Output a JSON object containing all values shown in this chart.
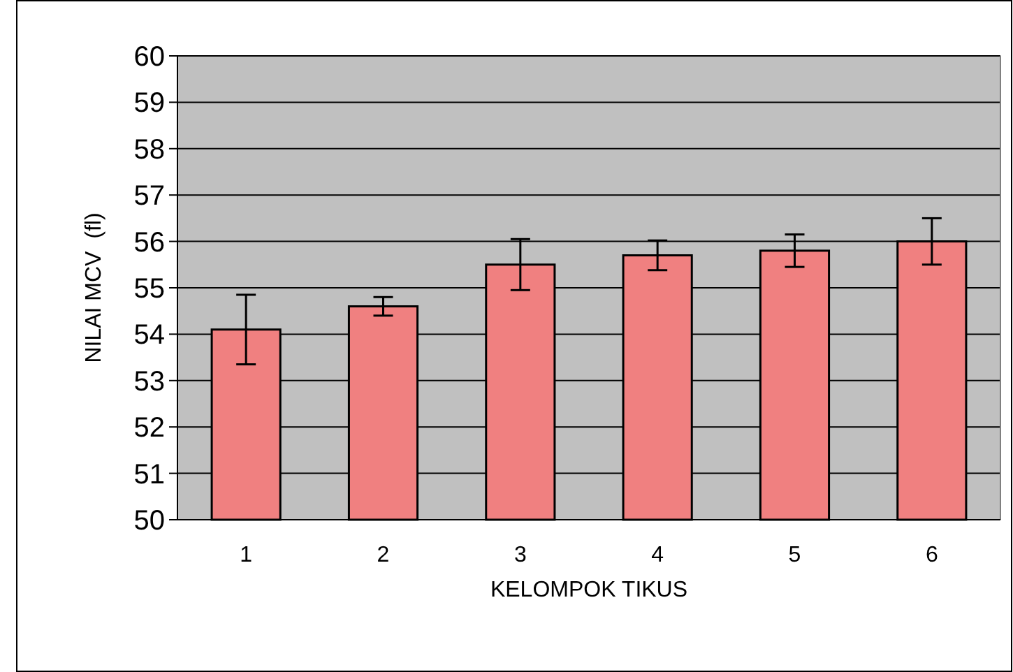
{
  "chart_data": {
    "type": "bar",
    "xlabel": "KELOMPOK TIKUS",
    "ylabel": "NILAI MCV  (fl)",
    "categories": [
      "1",
      "2",
      "3",
      "4",
      "5",
      "6"
    ],
    "values": [
      54.1,
      54.6,
      55.5,
      55.7,
      55.8,
      56.0
    ],
    "errors": [
      0.75,
      0.2,
      0.55,
      0.32,
      0.35,
      0.5
    ],
    "color": "#f08080",
    "ylim": [
      50,
      60
    ],
    "yticks": [
      50,
      51,
      52,
      53,
      54,
      55,
      56,
      57,
      58,
      59,
      60
    ],
    "grid": "y"
  }
}
